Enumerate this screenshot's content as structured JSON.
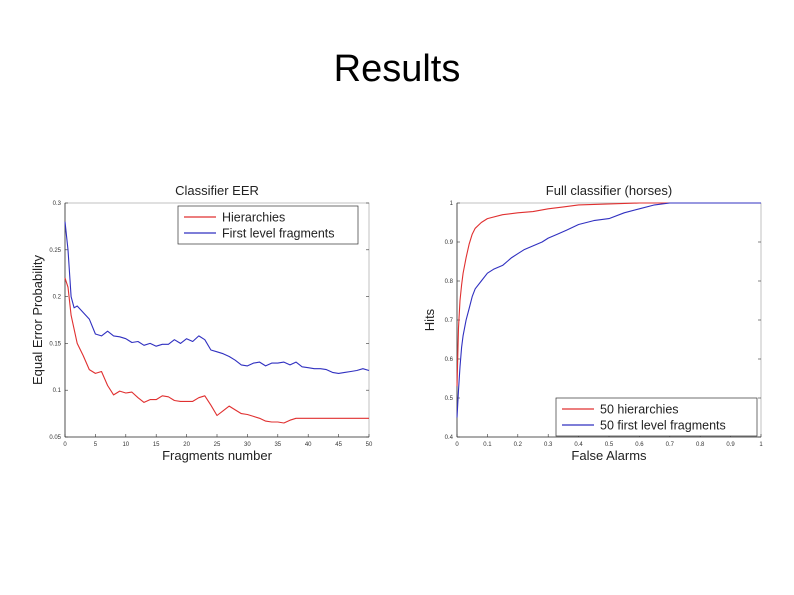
{
  "slide": {
    "title": "Results"
  },
  "chart_data": [
    {
      "type": "line",
      "title": "Classifier EER",
      "xlabel": "Fragments number",
      "ylabel": "Equal Error Probability",
      "xlim": [
        0,
        50
      ],
      "ylim": [
        0.05,
        0.3
      ],
      "xticks": [
        "0",
        "5",
        "10",
        "15",
        "20",
        "25",
        "30",
        "35",
        "40",
        "45",
        "50"
      ],
      "yticks": [
        "0.05",
        "0.1",
        "0.15",
        "0.2",
        "0.25",
        "0.3"
      ],
      "grid": false,
      "legend_position": "top",
      "series": [
        {
          "name": "Hierarchies",
          "color": "#e03030",
          "x": [
            0,
            0.5,
            1,
            2,
            3,
            4,
            5,
            6,
            7,
            8,
            9,
            10,
            11,
            12,
            13,
            14,
            15,
            16,
            17,
            18,
            19,
            20,
            21,
            22,
            23,
            24,
            25,
            26,
            27,
            28,
            29,
            30,
            31,
            32,
            33,
            34,
            35,
            36,
            37,
            38,
            39,
            40,
            45,
            50
          ],
          "y": [
            0.22,
            0.21,
            0.18,
            0.15,
            0.137,
            0.122,
            0.118,
            0.12,
            0.105,
            0.095,
            0.099,
            0.097,
            0.098,
            0.092,
            0.087,
            0.09,
            0.09,
            0.094,
            0.093,
            0.089,
            0.088,
            0.088,
            0.088,
            0.092,
            0.094,
            0.084,
            0.073,
            0.078,
            0.083,
            0.079,
            0.075,
            0.074,
            0.072,
            0.07,
            0.067,
            0.066,
            0.066,
            0.065,
            0.068,
            0.07,
            0.07,
            0.07,
            0.07,
            0.07
          ]
        },
        {
          "name": "First level fragments",
          "color": "#3030c0",
          "x": [
            0,
            0.5,
            1,
            1.5,
            2,
            3,
            4,
            5,
            6,
            7,
            8,
            9,
            10,
            11,
            12,
            13,
            14,
            15,
            16,
            17,
            18,
            19,
            20,
            21,
            22,
            23,
            24,
            25,
            26,
            27,
            28,
            29,
            30,
            31,
            32,
            33,
            34,
            35,
            36,
            37,
            38,
            39,
            40,
            41,
            42,
            43,
            44,
            45,
            46,
            47,
            48,
            49,
            50
          ],
          "y": [
            0.28,
            0.25,
            0.2,
            0.188,
            0.19,
            0.183,
            0.176,
            0.16,
            0.158,
            0.163,
            0.158,
            0.157,
            0.155,
            0.151,
            0.152,
            0.148,
            0.15,
            0.147,
            0.149,
            0.149,
            0.154,
            0.15,
            0.155,
            0.152,
            0.158,
            0.154,
            0.143,
            0.141,
            0.139,
            0.136,
            0.132,
            0.127,
            0.126,
            0.129,
            0.13,
            0.126,
            0.129,
            0.129,
            0.13,
            0.127,
            0.13,
            0.125,
            0.124,
            0.123,
            0.123,
            0.122,
            0.119,
            0.118,
            0.119,
            0.12,
            0.121,
            0.123,
            0.121
          ]
        }
      ]
    },
    {
      "type": "line",
      "title": "Full classifier (horses)",
      "xlabel": "False Alarms",
      "ylabel": "Hits",
      "xlim": [
        0,
        1
      ],
      "ylim": [
        0.4,
        1
      ],
      "xticks": [
        "0",
        "0.1",
        "0.2",
        "0.3",
        "0.4",
        "0.5",
        "0.6",
        "0.7",
        "0.8",
        "0.9",
        "1"
      ],
      "yticks": [
        "0.4",
        "0.5",
        "0.6",
        "0.7",
        "0.8",
        "0.9",
        "1"
      ],
      "grid": false,
      "legend_position": "bottom-right",
      "series": [
        {
          "name": "50 hierarchies",
          "color": "#e03030",
          "x": [
            0,
            0.005,
            0.01,
            0.015,
            0.02,
            0.03,
            0.04,
            0.05,
            0.06,
            0.08,
            0.1,
            0.15,
            0.2,
            0.25,
            0.3,
            0.35,
            0.4,
            0.6,
            1
          ],
          "y": [
            0.53,
            0.68,
            0.75,
            0.79,
            0.82,
            0.86,
            0.895,
            0.92,
            0.935,
            0.95,
            0.96,
            0.97,
            0.975,
            0.978,
            0.985,
            0.99,
            0.995,
            1,
            1
          ]
        },
        {
          "name": "50 first level fragments",
          "color": "#3030c0",
          "x": [
            0,
            0.005,
            0.01,
            0.015,
            0.02,
            0.03,
            0.04,
            0.05,
            0.06,
            0.08,
            0.1,
            0.12,
            0.15,
            0.18,
            0.2,
            0.22,
            0.25,
            0.28,
            0.3,
            0.33,
            0.36,
            0.4,
            0.45,
            0.5,
            0.55,
            0.6,
            0.65,
            0.7,
            0.8,
            1
          ],
          "y": [
            0.45,
            0.52,
            0.58,
            0.63,
            0.66,
            0.7,
            0.73,
            0.76,
            0.78,
            0.8,
            0.82,
            0.83,
            0.84,
            0.86,
            0.87,
            0.88,
            0.89,
            0.9,
            0.91,
            0.92,
            0.93,
            0.945,
            0.955,
            0.96,
            0.975,
            0.985,
            0.995,
            1,
            1,
            1
          ]
        }
      ]
    }
  ]
}
